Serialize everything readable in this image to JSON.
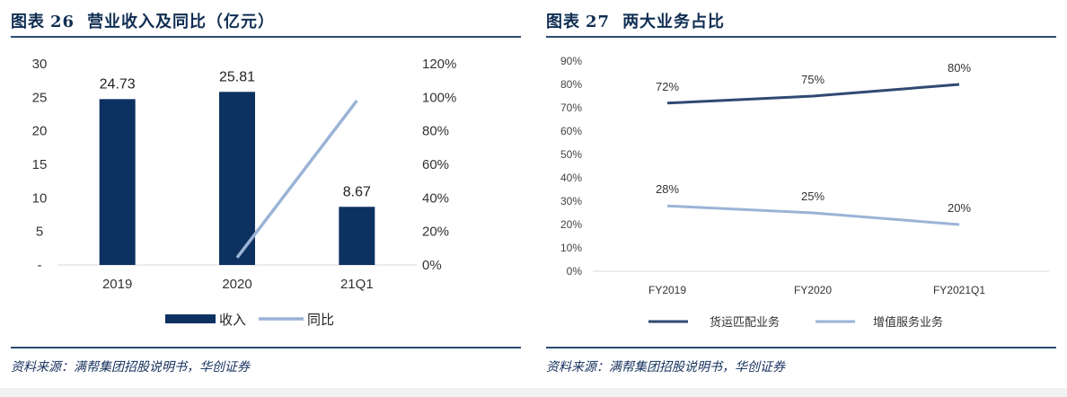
{
  "left": {
    "title_prefix": "图表",
    "title_num": "26",
    "title_text": "营业收入及同比（亿元）",
    "source": "资料来源：满帮集团招股说明书，华创证券"
  },
  "right": {
    "title_prefix": "图表",
    "title_num": "27",
    "title_text": "两大业务占比",
    "source": "资料来源：满帮集团招股说明书，华创证券"
  },
  "chart_data": [
    {
      "type": "bar",
      "categories": [
        "2019",
        "2020",
        "21Q1"
      ],
      "series": [
        {
          "name": "收入",
          "kind": "bar",
          "axis": "left",
          "values": [
            24.73,
            25.81,
            8.67
          ],
          "labels": [
            "24.73",
            "25.81",
            "8.67"
          ],
          "color": "#0d3160"
        },
        {
          "name": "同比",
          "kind": "line",
          "axis": "right",
          "values": [
            null,
            4.4,
            98
          ],
          "color": "#9ab4d6"
        }
      ],
      "y_left_ticks": [
        "-",
        "5",
        "10",
        "15",
        "20",
        "25",
        "30"
      ],
      "y_left_range": [
        0,
        30
      ],
      "y_right_ticks": [
        "0%",
        "20%",
        "40%",
        "60%",
        "80%",
        "100%",
        "120%"
      ],
      "y_right_range": [
        0,
        120
      ],
      "legend": "bottom-center",
      "grid": false
    },
    {
      "type": "line",
      "categories": [
        "FY2019",
        "FY2020",
        "FY2021Q1"
      ],
      "series": [
        {
          "name": "货运匹配业务",
          "values": [
            72,
            75,
            80
          ],
          "labels": [
            "72%",
            "75%",
            "80%"
          ],
          "color": "#2e4a72"
        },
        {
          "name": "增值服务业务",
          "values": [
            28,
            25,
            20
          ],
          "labels": [
            "28%",
            "25%",
            "20%"
          ],
          "color": "#9ab4d6"
        }
      ],
      "y_ticks": [
        "0%",
        "10%",
        "20%",
        "30%",
        "40%",
        "50%",
        "60%",
        "70%",
        "80%",
        "90%"
      ],
      "y_range": [
        0,
        90
      ],
      "legend": "bottom-center",
      "grid": false
    }
  ]
}
